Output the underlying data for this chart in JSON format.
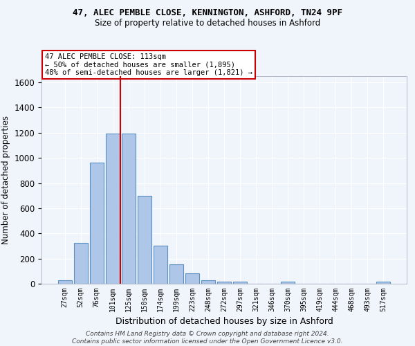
{
  "title1": "47, ALEC PEMBLE CLOSE, KENNINGTON, ASHFORD, TN24 9PF",
  "title2": "Size of property relative to detached houses in Ashford",
  "xlabel": "Distribution of detached houses by size in Ashford",
  "ylabel": "Number of detached properties",
  "bin_labels": [
    "27sqm",
    "52sqm",
    "76sqm",
    "101sqm",
    "125sqm",
    "150sqm",
    "174sqm",
    "199sqm",
    "223sqm",
    "248sqm",
    "272sqm",
    "297sqm",
    "321sqm",
    "346sqm",
    "370sqm",
    "395sqm",
    "419sqm",
    "444sqm",
    "468sqm",
    "493sqm",
    "517sqm"
  ],
  "bar_values": [
    25,
    325,
    965,
    1195,
    1195,
    700,
    305,
    155,
    80,
    25,
    15,
    15,
    0,
    0,
    15,
    0,
    0,
    0,
    0,
    0,
    15
  ],
  "bar_color": "#aec6e8",
  "bar_edge_color": "#5a8fc2",
  "vline_x": 3.5,
  "vline_color": "#cc0000",
  "annotation_text": "47 ALEC PEMBLE CLOSE: 113sqm\n← 50% of detached houses are smaller (1,895)\n48% of semi-detached houses are larger (1,821) →",
  "annotation_box_color": "#ffffff",
  "annotation_box_edge": "#cc0000",
  "ylim": [
    0,
    1650
  ],
  "yticks": [
    0,
    200,
    400,
    600,
    800,
    1000,
    1200,
    1400,
    1600
  ],
  "footnote": "Contains HM Land Registry data © Crown copyright and database right 2024.\nContains public sector information licensed under the Open Government Licence v3.0.",
  "bg_color": "#f0f4fb",
  "grid_color": "#ffffff"
}
